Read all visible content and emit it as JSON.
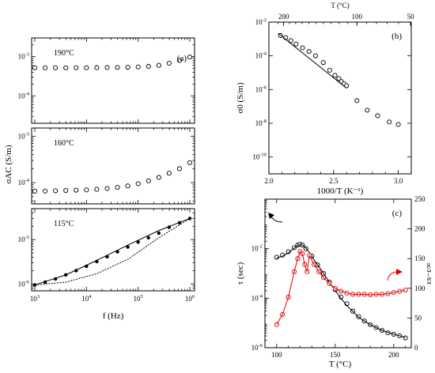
{
  "chart_data": [
    {
      "id": "a",
      "type": "scatter",
      "panel_label": "(a)",
      "x_scale": "log",
      "xlim": [
        1000,
        1000000
      ],
      "x_ticks": [
        1000,
        10000,
        100000,
        1000000
      ],
      "x_tick_labels": [
        "10^3",
        "10^4",
        "10^5",
        "10^6"
      ],
      "xlabel": "f (Hz)",
      "ylabel": "σAC (S/m)",
      "subplots": [
        {
          "temp_label": "190°C",
          "y_scale": "log",
          "ylim": [
            2e-05,
            0.003
          ],
          "y_ticks": [
            0.0001,
            0.001
          ],
          "y_tick_labels": [
            "10^-4",
            "10^-3"
          ],
          "series": [
            {
              "style": "filled-dots",
              "x": [
                1000,
                1585,
                2512,
                3981,
                6310,
                10000,
                15849,
                25119,
                39811,
                63096,
                100000,
                158489,
                251189,
                398107,
                630957,
                1000000
              ],
              "y": [
                0.00052,
                0.00052,
                0.00052,
                0.00052,
                0.00052,
                0.000522,
                0.000524,
                0.000527,
                0.00053,
                0.000535,
                0.000545,
                0.000565,
                0.0006,
                0.00068,
                0.0008,
                0.00098
              ]
            },
            {
              "style": "open-circles",
              "x": [
                1000,
                1585,
                2512,
                3981,
                6310,
                10000,
                15849,
                25119,
                39811,
                63096,
                100000,
                158489,
                251189,
                398107,
                630957,
                1000000
              ],
              "y": [
                0.00052,
                0.00052,
                0.00052,
                0.00052,
                0.00052,
                0.000522,
                0.000524,
                0.000527,
                0.00053,
                0.000535,
                0.000545,
                0.000565,
                0.0006,
                0.00068,
                0.0008,
                0.00098
              ]
            }
          ]
        },
        {
          "temp_label": "160°C",
          "y_scale": "log",
          "ylim": [
            3.5e-05,
            0.0015
          ],
          "y_ticks": [
            0.0001,
            0.001
          ],
          "y_tick_labels": [
            "10^-4",
            "10^-3"
          ],
          "series": [
            {
              "style": "filled-dots",
              "x": [
                1000,
                1585,
                2512,
                3981,
                6310,
                10000,
                15849,
                25119,
                39811,
                63096,
                100000,
                158489,
                251189,
                398107,
                630957,
                1000000
              ],
              "y": [
                6.6e-05,
                6.6e-05,
                6.7e-05,
                6.8e-05,
                6.9e-05,
                7e-05,
                7.2e-05,
                7.5e-05,
                7.9e-05,
                8.5e-05,
                9.5e-05,
                0.00011,
                0.00013,
                0.00016,
                0.0002,
                0.00027
              ]
            },
            {
              "style": "open-circles",
              "x": [
                1000,
                1585,
                2512,
                3981,
                6310,
                10000,
                15849,
                25119,
                39811,
                63096,
                100000,
                158489,
                251189,
                398107,
                630957,
                1000000
              ],
              "y": [
                6.6e-05,
                6.6e-05,
                6.7e-05,
                6.8e-05,
                6.9e-05,
                7e-05,
                7.2e-05,
                7.5e-05,
                7.9e-05,
                8.5e-05,
                9.5e-05,
                0.00011,
                0.00013,
                0.00016,
                0.0002,
                0.00027
              ]
            }
          ]
        },
        {
          "temp_label": "115°C",
          "y_scale": "log",
          "ylim": [
            7e-07,
            5e-05
          ],
          "y_ticks": [
            1e-06,
            1e-05
          ],
          "y_tick_labels": [
            "10^-6",
            "10^-5"
          ],
          "series": [
            {
              "style": "filled-dots",
              "x": [
                1000,
                1585,
                2512,
                3981,
                6310,
                10000,
                15849,
                25119,
                39811,
                63096,
                100000,
                158489,
                251189,
                398107,
                630957,
                1000000
              ],
              "y": [
                9.5e-07,
                1.1e-06,
                1.3e-06,
                1.6e-06,
                2e-06,
                2.5e-06,
                3.2e-06,
                4.1e-06,
                5.3e-06,
                6.8e-06,
                8.8e-06,
                1.1e-05,
                1.4e-05,
                1.9e-05,
                2.4e-05,
                3e-05
              ]
            },
            {
              "style": "solid-line",
              "x": [
                1000,
                3981,
                15849,
                63096,
                251189,
                1000000
              ],
              "y": [
                9.5e-07,
                1.6e-06,
                3.4e-06,
                7.5e-06,
                1.6e-05,
                3e-05
              ]
            },
            {
              "style": "dashed-line",
              "x": [
                1000,
                3981,
                15849,
                63096,
                251189,
                1000000
              ],
              "y": [
                9.5e-07,
                1.1e-06,
                1.7e-06,
                3.6e-06,
                1.1e-05,
                3e-05
              ]
            }
          ]
        }
      ]
    },
    {
      "id": "b",
      "type": "scatter",
      "panel_label": "(b)",
      "xlabel": "1000/T (K⁻¹)",
      "xlim": [
        2.0,
        3.1
      ],
      "x_ticks": [
        2.0,
        2.5,
        3.0
      ],
      "x_tick_labels": [
        "2.0",
        "2.5",
        "3.0"
      ],
      "top_axis_label": "T (°C)",
      "top_ticks_celsius": [
        200,
        100,
        50
      ],
      "ylabel": "σ0 (S/m)",
      "y_scale": "log",
      "ylim": [
        1e-11,
        0.01
      ],
      "y_ticks": [
        0.01,
        0.0001,
        1e-06,
        1e-08,
        1e-10
      ],
      "y_tick_labels": [
        "10^-2",
        "10^-4",
        "10^-6",
        "10^-8",
        "10^-10"
      ],
      "series": [
        {
          "style": "open-circles",
          "x": [
            2.09,
            2.13,
            2.17,
            2.21,
            2.26,
            2.31,
            2.36,
            2.42,
            2.47,
            2.51,
            2.54,
            2.56,
            2.58,
            2.6,
            2.68,
            2.76,
            2.84,
            2.93,
            3.0
          ],
          "y": [
            0.0016,
            0.0012,
            0.0008,
            0.0005,
            0.0003,
            0.00018,
            0.0001,
            4e-05,
            1.4e-05,
            7e-06,
            4.5e-06,
            3e-06,
            2.2e-06,
            1.7e-06,
            2.2e-07,
            6e-08,
            2.8e-08,
            1.2e-08,
            8.5e-09
          ]
        },
        {
          "style": "solid-line",
          "x": [
            2.07,
            2.6
          ],
          "y": [
            0.0022,
            1.2e-06
          ]
        }
      ]
    },
    {
      "id": "c",
      "type": "scatter",
      "panel_label": "(c)",
      "xlabel": "T (°C)",
      "xlim": [
        90,
        215
      ],
      "x_ticks": [
        100,
        150,
        200
      ],
      "x_tick_labels": [
        "100",
        "150",
        "200"
      ],
      "ylabel_left": "τ (sec)",
      "y_left_scale": "log",
      "y_left_lim": [
        1e-06,
        1
      ],
      "y_left_ticks": [
        1e-06,
        0.0001,
        0.01
      ],
      "y_left_tick_labels": [
        "10^-6",
        "10^-4",
        "10^-2"
      ],
      "ylabel_right": "εs−ε∞",
      "y_right_lim": [
        0,
        250
      ],
      "y_right_ticks": [
        0,
        50,
        100,
        150,
        200,
        250
      ],
      "y_right_tick_labels": [
        "0",
        "50",
        "100",
        "150",
        "200",
        "250"
      ],
      "series": [
        {
          "axis": "left",
          "color": "#000000",
          "style": "open-circles",
          "x": [
            100,
            105,
            110,
            115,
            118,
            120,
            122,
            125,
            130,
            135,
            140,
            145,
            150,
            155,
            160,
            165,
            170,
            175,
            180,
            185,
            190,
            195,
            200,
            205,
            210
          ],
          "y": [
            0.0045,
            0.0055,
            0.0075,
            0.011,
            0.014,
            0.015,
            0.014,
            0.01,
            0.005,
            0.0022,
            0.001,
            0.00045,
            0.00022,
            0.00011,
            6e-05,
            3e-05,
            1.8e-05,
            1.2e-05,
            8.5e-06,
            6.5e-06,
            5e-06,
            4e-06,
            3.5e-06,
            3e-06,
            2.5e-06
          ]
        },
        {
          "axis": "left",
          "color": "#000000",
          "style": "solid-line",
          "x": [
            100,
            105,
            110,
            115,
            118,
            121,
            124,
            128,
            132,
            138,
            145,
            152,
            160,
            170,
            180,
            190,
            200,
            210
          ],
          "y": [
            0.0042,
            0.005,
            0.0068,
            0.0105,
            0.0135,
            0.0148,
            0.012,
            0.007,
            0.0035,
            0.0014,
            0.00045,
            0.00015,
            5e-05,
            1.7e-05,
            8.5e-06,
            5e-06,
            3.5e-06,
            2.6e-06
          ]
        },
        {
          "axis": "right",
          "color": "#e00000",
          "style": "open-circles",
          "x": [
            100,
            105,
            110,
            115,
            118,
            120,
            122,
            124,
            126,
            128,
            132,
            136,
            140,
            145,
            150,
            155,
            160,
            165,
            170,
            175,
            180,
            185,
            190,
            195,
            200,
            205,
            210
          ],
          "y": [
            39,
            56,
            85,
            128,
            150,
            162,
            158,
            140,
            128,
            155,
            140,
            128,
            118,
            108,
            100,
            95,
            92,
            90,
            90,
            90,
            89,
            90,
            90,
            91,
            93,
            95,
            97
          ]
        },
        {
          "axis": "right",
          "color": "#e00000",
          "style": "solid-line",
          "x": [
            100,
            105,
            110,
            115,
            118,
            120,
            122,
            124,
            126,
            128,
            132,
            136,
            140,
            145,
            150,
            155,
            160,
            165,
            170,
            175,
            180,
            185,
            190,
            195,
            200,
            205,
            210
          ],
          "y": [
            39,
            56,
            85,
            128,
            150,
            162,
            158,
            140,
            128,
            155,
            140,
            128,
            118,
            108,
            100,
            95,
            92,
            90,
            90,
            90,
            89,
            90,
            90,
            91,
            93,
            95,
            97
          ]
        }
      ],
      "arrows": [
        {
          "points_to": "left-axis",
          "color": "#000000"
        },
        {
          "points_to": "right-axis",
          "color": "#e00000"
        }
      ]
    }
  ]
}
